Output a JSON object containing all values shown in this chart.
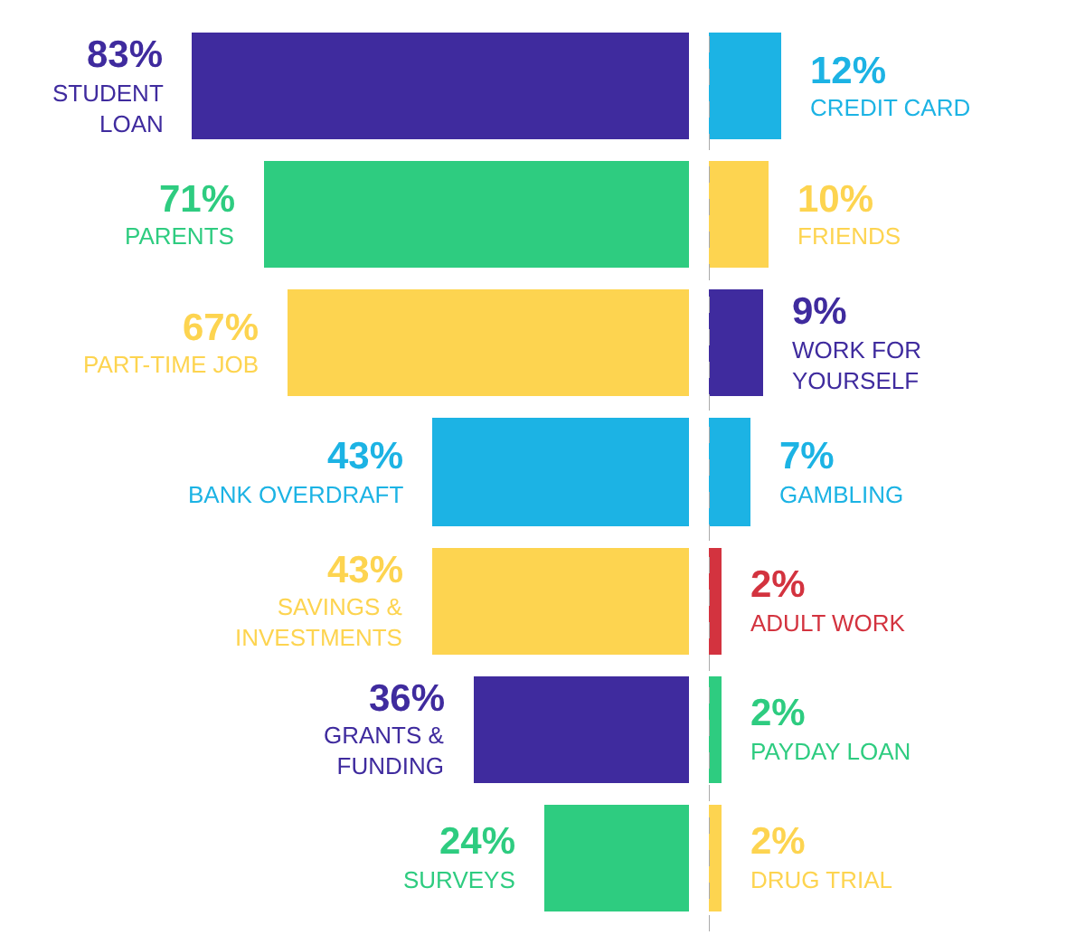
{
  "chart_data": [
    {
      "type": "bar",
      "orientation": "horizontal",
      "categories": [
        "STUDENT\nLOAN",
        "PARENTS",
        "PART-TIME JOB",
        "BANK OVERDRAFT",
        "SAVINGS &\nINVESTMENTS",
        "GRANTS &\nFUNDING",
        "SURVEYS"
      ],
      "values": [
        83,
        71,
        67,
        43,
        43,
        36,
        24
      ],
      "colors": [
        "#3f2b9e",
        "#2ecc80",
        "#fdd450",
        "#1cb3e4",
        "#fdd450",
        "#3f2b9e",
        "#2ecc80"
      ],
      "value_labels": [
        "83%",
        "71%",
        "67%",
        "43%",
        "43%",
        "36%",
        "24%"
      ],
      "xlim": [
        115,
        0
      ],
      "tick_labels": false
    },
    {
      "type": "bar",
      "orientation": "horizontal",
      "categories": [
        "CREDIT CARD",
        "FRIENDS",
        "WORK FOR\nYOURSELF",
        "GAMBLING",
        "ADULT WORK",
        "PAYDAY LOAN",
        "DRUG TRIAL"
      ],
      "values": [
        12,
        10,
        9,
        7,
        2,
        2,
        2
      ],
      "colors": [
        "#1cb3e4",
        "#fdd450",
        "#3f2b9e",
        "#1cb3e4",
        "#d3333f",
        "#2ecc80",
        "#fdd450"
      ],
      "value_labels": [
        "12%",
        "10%",
        "9%",
        "7%",
        "2%",
        "2%",
        "2%"
      ],
      "xlim": [
        0,
        63
      ],
      "tick_labels": false,
      "ref_lines": [
        {
          "axis": "x",
          "value": 0,
          "line_style": "dashed",
          "color": "#aaaaaa"
        }
      ]
    }
  ]
}
